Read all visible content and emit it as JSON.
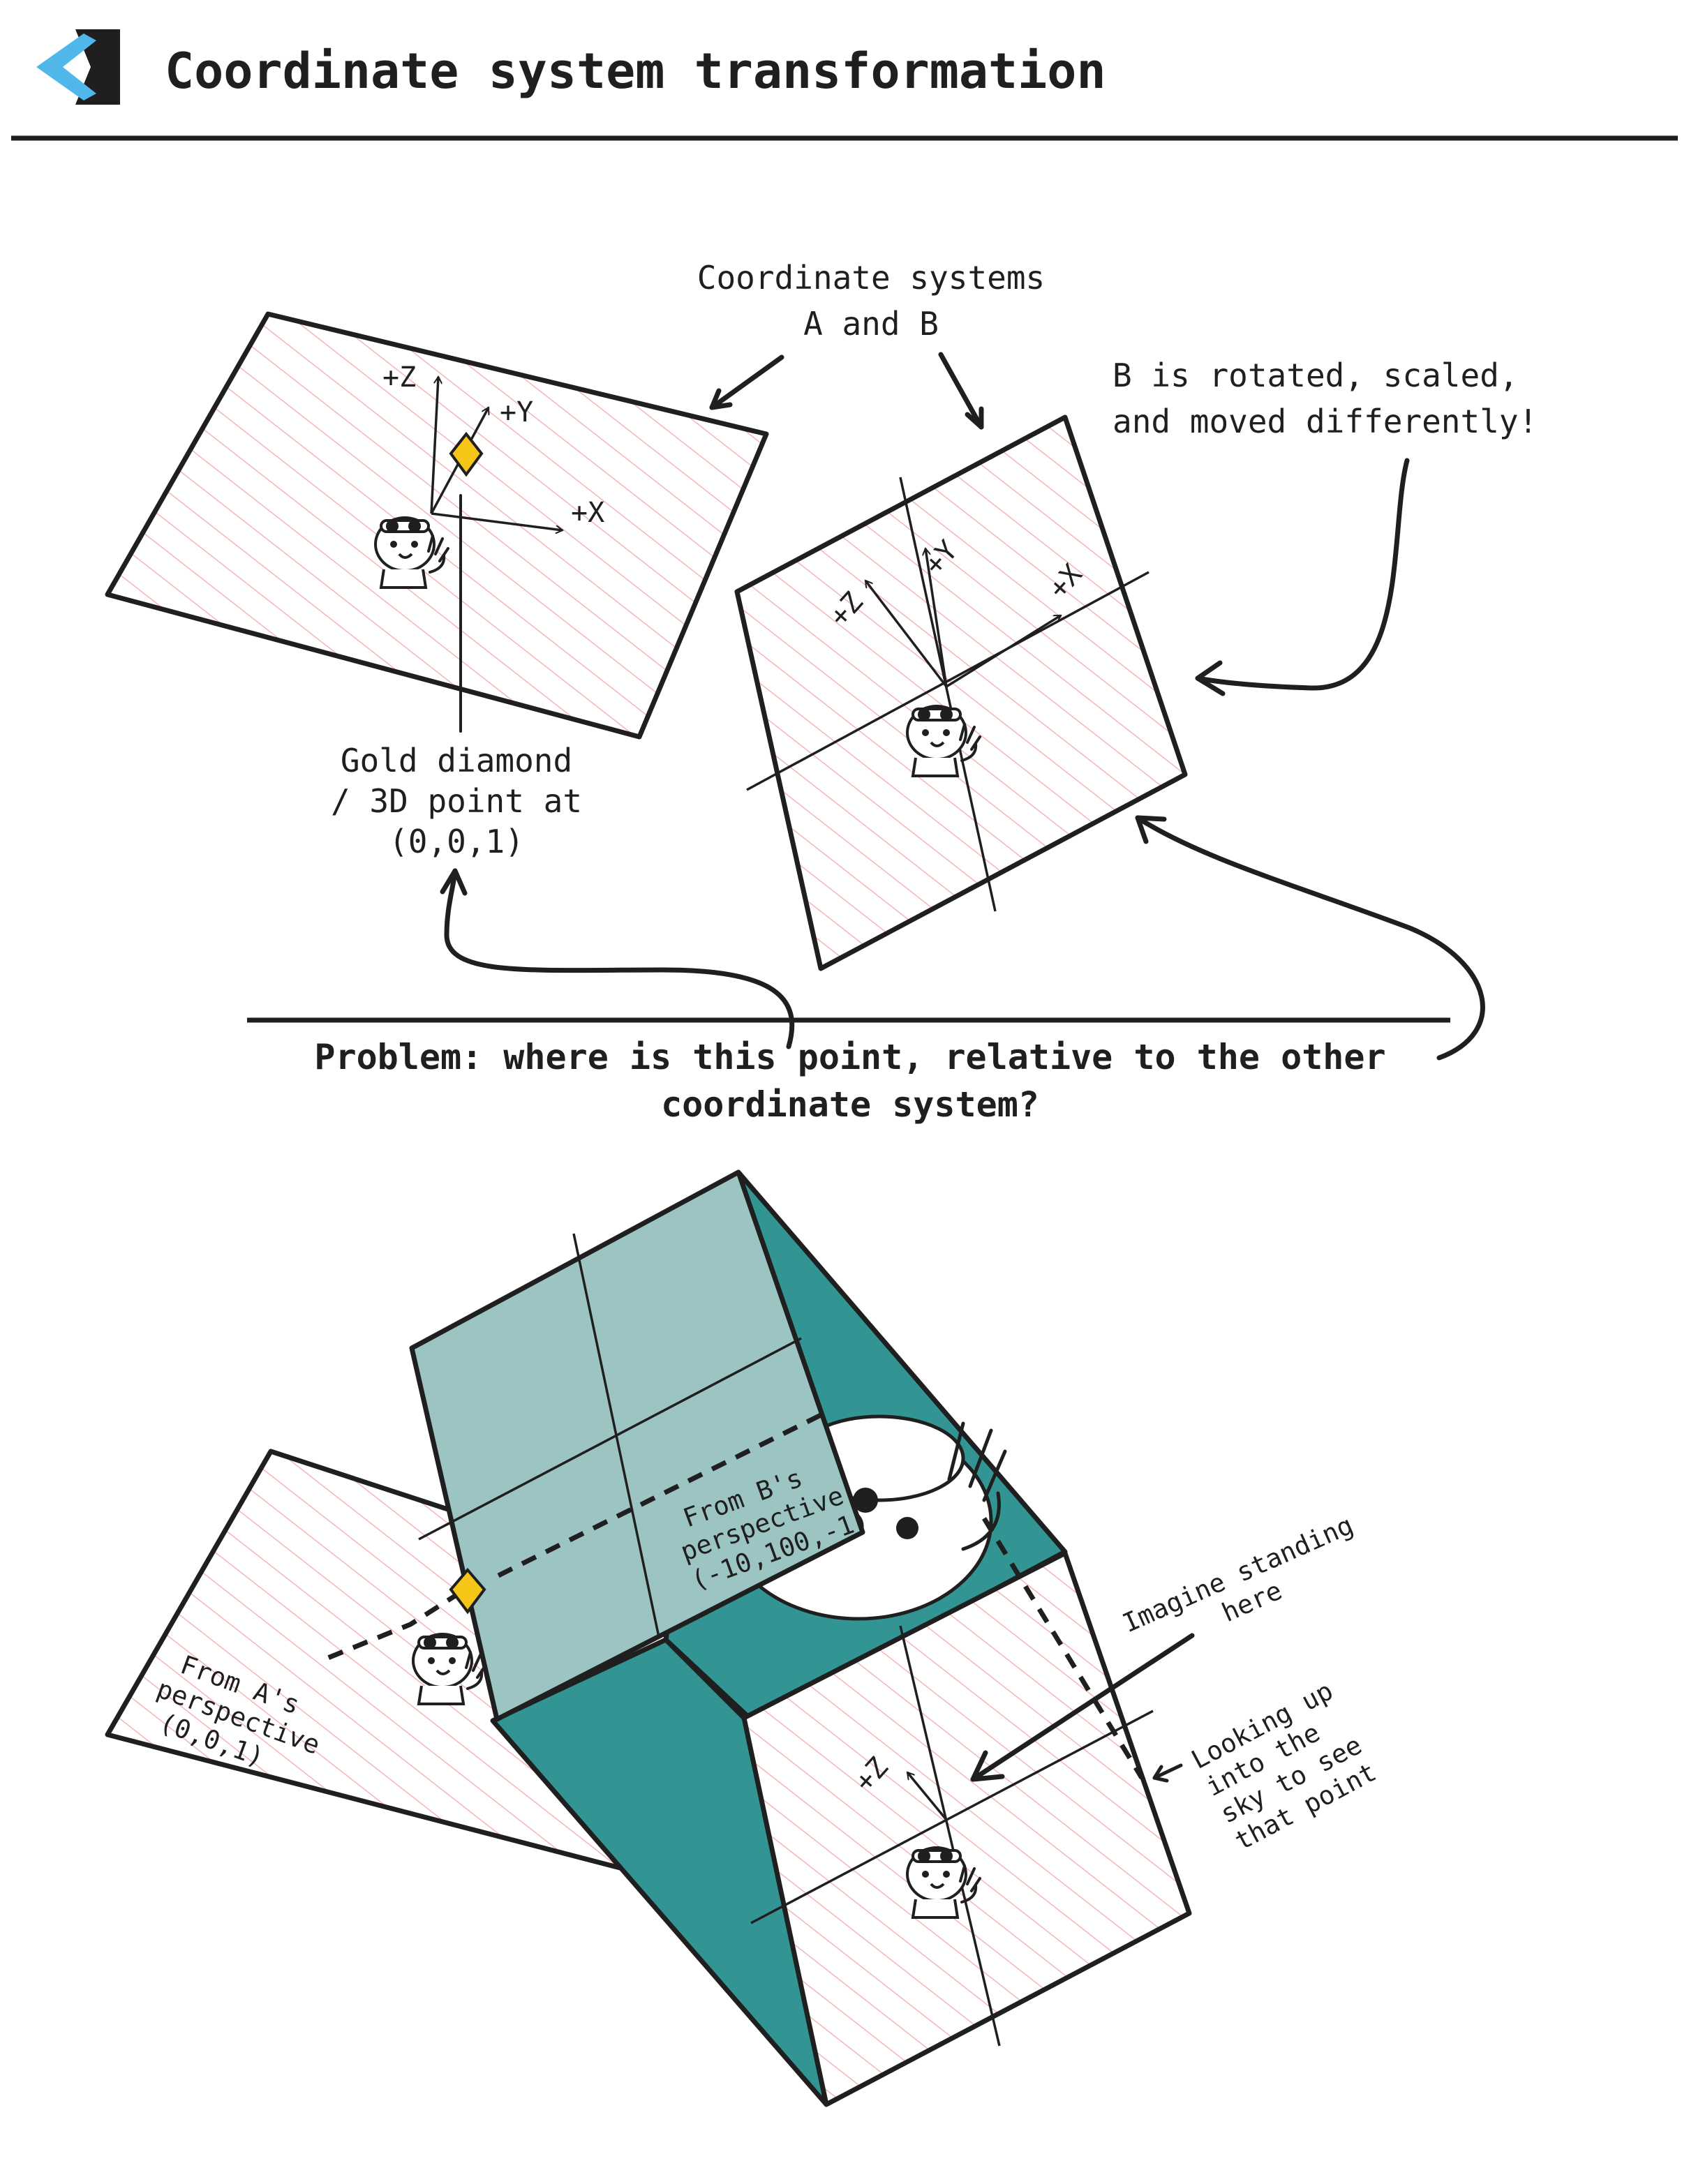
{
  "header": {
    "title": "Coordinate system transformation",
    "logo_icon": "back-chevron-logo-icon"
  },
  "colors": {
    "hatch": "#f3b6b6",
    "teal_dark": "#329594",
    "teal_light": "#9cc4c3",
    "diamond": "#f5c518",
    "ink": "#1f1f1f",
    "logo_blue": "#4fb7ea"
  },
  "top": {
    "systems_label_line1": "Coordinate systems",
    "systems_label_line2": "A and B",
    "b_note_line1": "B is rotated, scaled,",
    "b_note_line2": "and moved differently!",
    "diamond_label_line1": "Gold diamond",
    "diamond_label_line2": "/ 3D point at",
    "diamond_label_line3": "(0,0,1)",
    "axis_a": {
      "z": "+Z",
      "y": "+Y",
      "x": "+X"
    },
    "axis_b": {
      "z": "+Z",
      "y": "+Y",
      "x": "+X"
    }
  },
  "problem": {
    "line1": "Problem: where is this point, relative to the other",
    "line2": "coordinate system?"
  },
  "bottom": {
    "from_a_line1": "From A's",
    "from_a_line2": "perspective",
    "from_a_line3": "(0,0,1)",
    "from_b_line1": "From B's",
    "from_b_line2": "perspective",
    "from_b_line3": "(-10,100,-1)",
    "imagine_line1": "Imagine standing",
    "imagine_line2": "here",
    "looking_line1": "Looking up",
    "looking_line2": "into the",
    "looking_line3": "sky to see",
    "looking_line4": "that point",
    "axis_z": "+Z"
  }
}
